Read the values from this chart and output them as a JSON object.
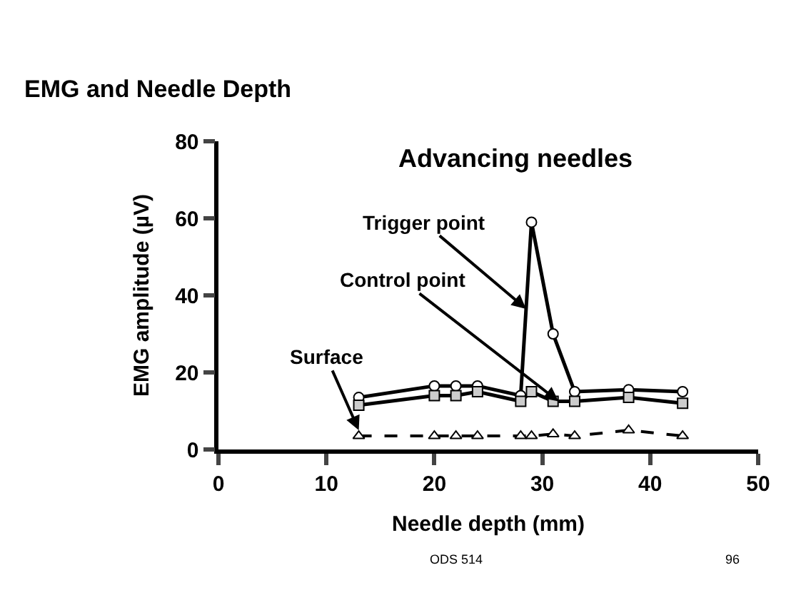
{
  "chart_data": {
    "type": "line",
    "title": "EMG and Needle Depth",
    "subtitle": "Advancing needles",
    "xlabel": "Needle depth (mm)",
    "ylabel": "EMG amplitude (µV)",
    "x": [
      13,
      20,
      22,
      24,
      28,
      29,
      31,
      33,
      38,
      43
    ],
    "series": [
      {
        "name": "Trigger point",
        "color": "#000000",
        "marker": "circle",
        "line_style": "solid",
        "values": [
          13.5,
          16.5,
          16.5,
          16.5,
          14,
          59,
          30,
          15,
          15.5,
          15
        ]
      },
      {
        "name": "Control point",
        "color": "#000000",
        "marker": "square",
        "line_style": "solid",
        "values": [
          11.5,
          14,
          14,
          15,
          12.5,
          15,
          12.5,
          12.5,
          13.5,
          12
        ]
      },
      {
        "name": "Surface",
        "color": "#000000",
        "marker": "triangle",
        "line_style": "dashed",
        "values": [
          3.5,
          3.5,
          3.5,
          3.5,
          3.5,
          3.5,
          4,
          3.5,
          5,
          3.5
        ]
      }
    ],
    "xlim": [
      0,
      50
    ],
    "xticks": [
      0,
      10,
      20,
      30,
      40,
      50
    ],
    "ylim": [
      0,
      80
    ],
    "yticks": [
      0,
      20,
      40,
      60,
      80
    ],
    "legend": false,
    "annotations": [
      "ODS 514",
      "96"
    ]
  }
}
